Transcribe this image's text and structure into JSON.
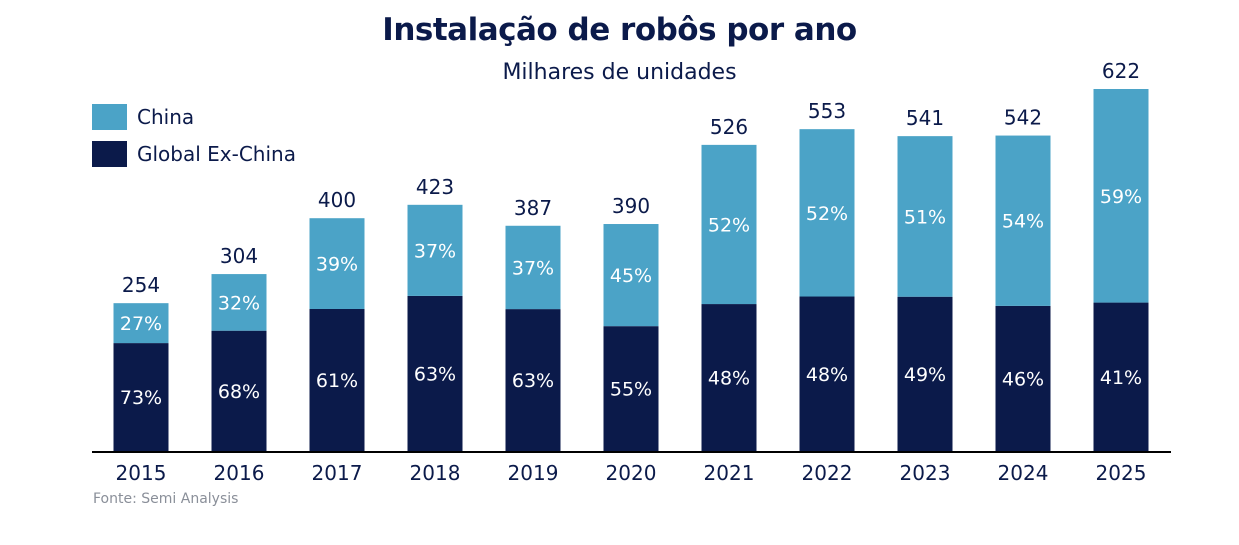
{
  "chart_data": {
    "type": "bar",
    "stacked": true,
    "title": "Instalação de robôs por ano",
    "subtitle": "Milhares de unidades",
    "xlabel": "",
    "ylabel": "",
    "categories": [
      "2015",
      "2016",
      "2017",
      "2018",
      "2019",
      "2020",
      "2021",
      "2022",
      "2023",
      "2024",
      "2025"
    ],
    "totals": [
      254,
      304,
      400,
      423,
      387,
      390,
      526,
      553,
      541,
      542,
      622
    ],
    "series": [
      {
        "name": "Global Ex-China",
        "color": "#0b1a4a",
        "share_pct": [
          73,
          68,
          61,
          63,
          63,
          55,
          48,
          48,
          49,
          46,
          41
        ]
      },
      {
        "name": "China",
        "color": "#4ba3c7",
        "share_pct": [
          27,
          32,
          39,
          37,
          37,
          45,
          52,
          52,
          51,
          54,
          59
        ]
      }
    ],
    "ylim": [
      0,
      622
    ],
    "grid": false,
    "legend_position": "top-left",
    "source": "Fonte: Semi Analysis"
  }
}
